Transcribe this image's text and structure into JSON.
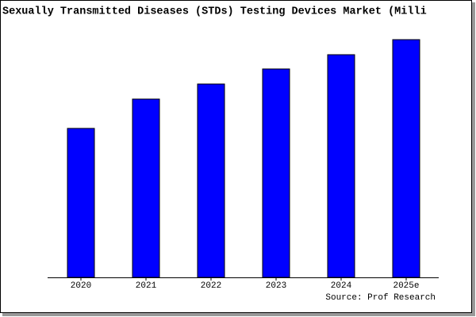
{
  "chart_data": {
    "type": "bar",
    "title": "Sexually Transmitted Diseases (STDs) Testing Devices Market (Milli",
    "source": "Source: Prof Research",
    "categories": [
      "2020",
      "2021",
      "2022",
      "2023",
      "2024",
      "2025e"
    ],
    "values": [
      188,
      225,
      244,
      263,
      281,
      300
    ],
    "color": "#0000ff",
    "ylim": [
      0,
      305
    ]
  }
}
